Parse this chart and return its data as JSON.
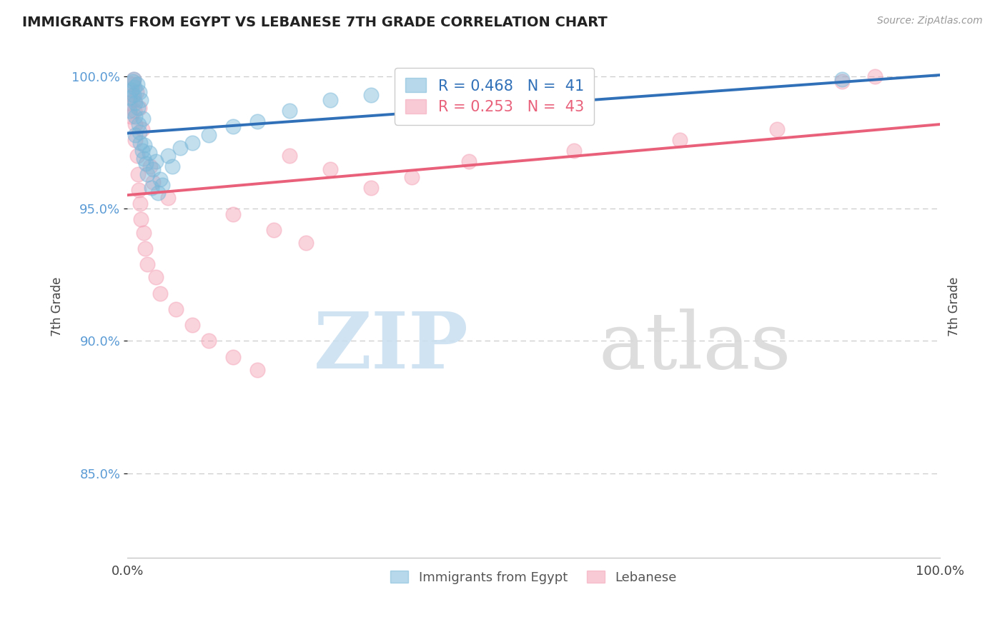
{
  "title": "IMMIGRANTS FROM EGYPT VS LEBANESE 7TH GRADE CORRELATION CHART",
  "source": "Source: ZipAtlas.com",
  "ylabel": "7th Grade",
  "legend_blue_label": "Immigrants from Egypt",
  "legend_pink_label": "Lebanese",
  "blue_R": 0.468,
  "blue_N": 41,
  "pink_R": 0.253,
  "pink_N": 43,
  "blue_color": "#7ab8d9",
  "pink_color": "#f4a0b5",
  "blue_line_color": "#3070b8",
  "pink_line_color": "#e8607a",
  "grid_color": "#cccccc",
  "xlim": [
    0.0,
    1.0
  ],
  "ylim": [
    0.818,
    1.008
  ],
  "yticks": [
    0.85,
    0.9,
    0.95,
    1.0
  ],
  "ytick_labels": [
    "85.0%",
    "90.0%",
    "95.0%",
    "100.0%"
  ],
  "blue_x": [
    0.003,
    0.003,
    0.005,
    0.007,
    0.008,
    0.008,
    0.009,
    0.01,
    0.01,
    0.01,
    0.012,
    0.013,
    0.014,
    0.015,
    0.015,
    0.016,
    0.017,
    0.018,
    0.019,
    0.02,
    0.021,
    0.023,
    0.025,
    0.027,
    0.03,
    0.032,
    0.035,
    0.038,
    0.04,
    0.043,
    0.05,
    0.055,
    0.065,
    0.08,
    0.1,
    0.13,
    0.16,
    0.2,
    0.25,
    0.3,
    0.88
  ],
  "blue_y": [
    0.992,
    0.987,
    0.995,
    0.998,
    0.999,
    0.993,
    0.996,
    0.99,
    0.985,
    0.978,
    0.997,
    0.988,
    0.982,
    0.994,
    0.979,
    0.975,
    0.991,
    0.972,
    0.984,
    0.969,
    0.974,
    0.967,
    0.963,
    0.971,
    0.958,
    0.965,
    0.968,
    0.956,
    0.961,
    0.959,
    0.97,
    0.966,
    0.973,
    0.975,
    0.978,
    0.981,
    0.983,
    0.987,
    0.991,
    0.993,
    0.999
  ],
  "pink_x": [
    0.003,
    0.004,
    0.006,
    0.007,
    0.008,
    0.009,
    0.009,
    0.01,
    0.01,
    0.011,
    0.012,
    0.013,
    0.014,
    0.015,
    0.016,
    0.017,
    0.018,
    0.02,
    0.022,
    0.025,
    0.028,
    0.032,
    0.035,
    0.04,
    0.05,
    0.06,
    0.08,
    0.1,
    0.13,
    0.16,
    0.2,
    0.25,
    0.3,
    0.35,
    0.42,
    0.55,
    0.68,
    0.8,
    0.88,
    0.92,
    0.13,
    0.18,
    0.22
  ],
  "pink_y": [
    0.99,
    0.985,
    0.993,
    0.997,
    0.999,
    0.991,
    0.987,
    0.982,
    0.976,
    0.994,
    0.97,
    0.963,
    0.957,
    0.988,
    0.952,
    0.946,
    0.98,
    0.941,
    0.935,
    0.929,
    0.966,
    0.96,
    0.924,
    0.918,
    0.954,
    0.912,
    0.906,
    0.9,
    0.894,
    0.889,
    0.97,
    0.965,
    0.958,
    0.962,
    0.968,
    0.972,
    0.976,
    0.98,
    0.998,
    1.0,
    0.948,
    0.942,
    0.937
  ]
}
